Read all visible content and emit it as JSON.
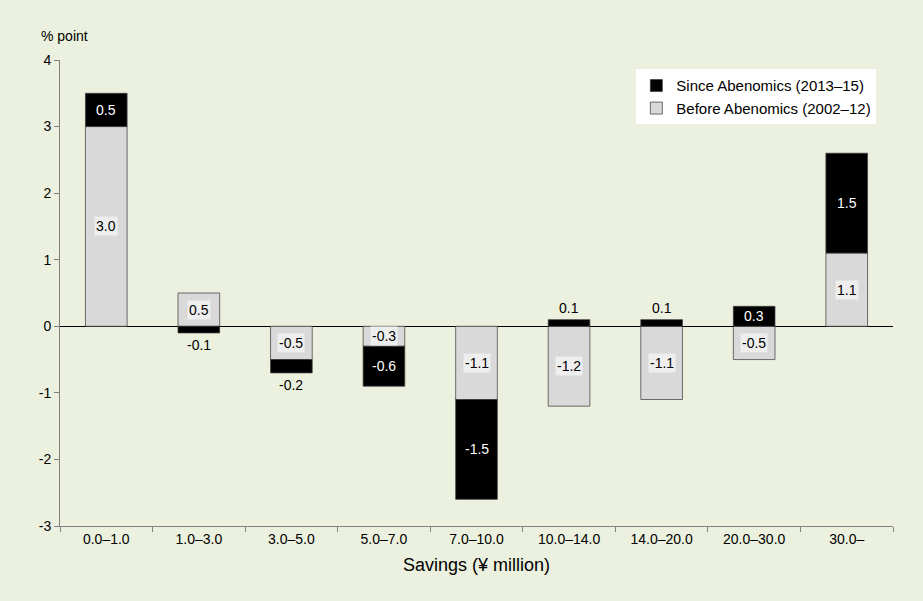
{
  "chart_data": {
    "type": "bar",
    "stacked": true,
    "data_labels": true,
    "grid": false,
    "legend": "top right",
    "x_label": "Savings (¥ million)",
    "y_label": "% point",
    "categories": [
      "0.0–1.0",
      "1.0–3.0",
      "3.0–5.0",
      "5.0–7.0",
      "7.0–10.0",
      "10.0–14.0",
      "14.0–20.0",
      "20.0–30.0",
      "30.0–"
    ],
    "series": [
      {
        "name": "Before Abenomics (2002–12)",
        "color": "#d9d9d9",
        "values": [
          3.0,
          0.5,
          -0.5,
          -0.3,
          -1.1,
          -1.2,
          -1.1,
          -0.5,
          1.1
        ],
        "value_labels": [
          "3.0",
          "0.5",
          "-0.5",
          "-0.3",
          "-1.1",
          "-1.2",
          "-1.1",
          "-0.5",
          "1.1"
        ]
      },
      {
        "name": "Since Abenomics (2013–15)",
        "color": "#000000",
        "values": [
          0.5,
          -0.1,
          -0.2,
          -0.6,
          -1.5,
          0.1,
          0.1,
          0.3,
          1.5
        ],
        "value_labels": [
          "0.5",
          "-0.1",
          "-0.2",
          "-0.6",
          "-1.5",
          "0.1",
          "0.1",
          "0.3",
          "1.5"
        ]
      }
    ],
    "ylim": [
      -3,
      4
    ],
    "yticks": [
      -3,
      -2,
      -1,
      0,
      1,
      2,
      3,
      4
    ]
  }
}
